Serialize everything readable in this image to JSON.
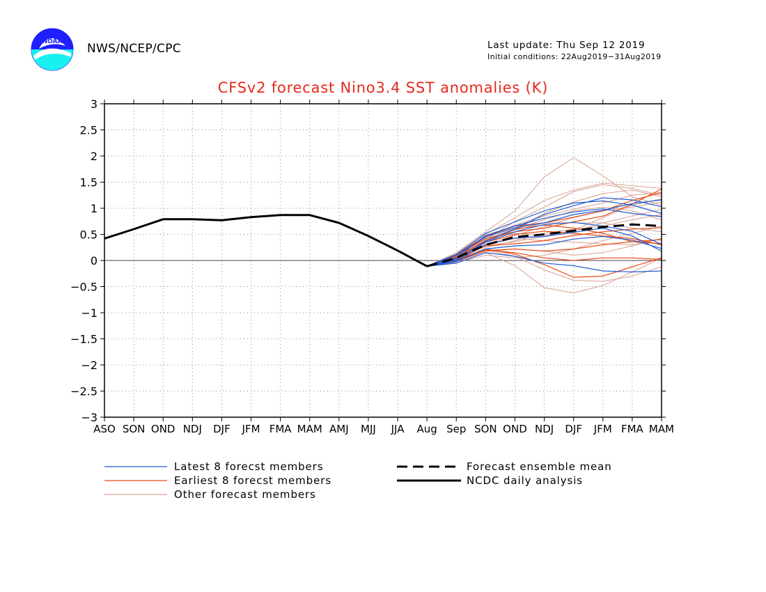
{
  "header": {
    "org": "NWS/NCEP/CPC",
    "last_update": "Last update: Thu Sep 12 2019",
    "initial_conditions": "Initial conditions: 22Aug2019−31Aug2019",
    "logo_text": "NOAA"
  },
  "legend": {
    "latest": "Latest 8 forecst members",
    "earliest": "Earliest 8 forecst members",
    "other": "Other forecast members",
    "mean": "Forecast ensemble mean",
    "analysis": "NCDC daily analysis"
  },
  "colors": {
    "latest": "#1f5bd6",
    "earliest": "#e84a17",
    "other": "#d6a090",
    "title": "#e8281c",
    "mean": "#000000",
    "analysis": "#000000"
  },
  "chart_data": {
    "type": "line",
    "title": "CFSv2 forecast Nino3.4 SST anomalies (K)",
    "categories": [
      "ASO",
      "SON",
      "OND",
      "NDJ",
      "DJF",
      "JFM",
      "FMA",
      "MAM",
      "AMJ",
      "MJJ",
      "JJA",
      "Aug",
      "Sep",
      "SON",
      "OND",
      "NDJ",
      "DJF",
      "JFM",
      "FMA",
      "MAM"
    ],
    "ylim": [
      -3,
      3
    ],
    "yticks": [
      "3",
      "2.5",
      "2",
      "1.5",
      "1",
      "0.5",
      "0",
      "−0.5",
      "−1",
      "−1.5",
      "−2",
      "−2.5",
      "−3"
    ],
    "grid": true,
    "analysis": [
      0.42,
      0.6,
      0.79,
      0.79,
      0.77,
      0.83,
      0.87,
      0.87,
      0.72,
      0.47,
      0.19,
      -0.11
    ],
    "ensemble_mean": [
      -0.11,
      0.05,
      0.3,
      0.45,
      0.5,
      0.57,
      0.64,
      0.69,
      0.66
    ],
    "latest_members": [
      [
        -0.11,
        0.12,
        0.52,
        0.74,
        0.95,
        1.1,
        1.14,
        1.06,
        0.9
      ],
      [
        -0.11,
        0.02,
        0.37,
        0.6,
        0.88,
        1.05,
        1.2,
        1.16,
        1.03
      ],
      [
        -0.11,
        0.05,
        0.48,
        0.66,
        0.81,
        0.93,
        0.99,
        0.9,
        0.84
      ],
      [
        -0.11,
        0.0,
        0.3,
        0.43,
        0.46,
        0.54,
        0.62,
        0.47,
        0.18
      ],
      [
        -0.11,
        -0.05,
        0.15,
        0.08,
        -0.05,
        -0.1,
        -0.2,
        -0.22,
        -0.2
      ],
      [
        -0.11,
        0.1,
        0.45,
        0.63,
        0.72,
        0.88,
        0.96,
        1.09,
        1.16
      ],
      [
        -0.11,
        0.04,
        0.35,
        0.55,
        0.69,
        0.73,
        0.66,
        0.56,
        0.31
      ],
      [
        -0.11,
        -0.02,
        0.22,
        0.28,
        0.3,
        0.41,
        0.46,
        0.39,
        0.23
      ]
    ],
    "earliest_members": [
      [
        -0.11,
        0.1,
        0.42,
        0.55,
        0.62,
        0.74,
        0.85,
        1.08,
        1.37
      ],
      [
        -0.11,
        0.08,
        0.38,
        0.6,
        0.68,
        0.62,
        0.52,
        0.36,
        0.32
      ],
      [
        -0.11,
        0.0,
        0.22,
        0.12,
        -0.08,
        -0.32,
        -0.3,
        -0.12,
        0.05
      ],
      [
        -0.11,
        0.05,
        0.28,
        0.32,
        0.38,
        0.48,
        0.55,
        0.6,
        0.63
      ],
      [
        -0.11,
        0.12,
        0.46,
        0.66,
        0.72,
        0.83,
        0.95,
        1.15,
        1.3
      ],
      [
        -0.11,
        -0.02,
        0.18,
        0.22,
        0.18,
        0.22,
        0.3,
        0.36,
        0.4
      ],
      [
        -0.11,
        0.06,
        0.35,
        0.5,
        0.56,
        0.52,
        0.47,
        0.42,
        0.3
      ],
      [
        -0.11,
        0.03,
        0.2,
        0.15,
        0.05,
        0.0,
        0.05,
        0.05,
        0.02
      ]
    ],
    "other_members": [
      [
        -0.11,
        0.15,
        0.55,
        0.95,
        1.6,
        1.97,
        1.62,
        1.22,
        1.06
      ],
      [
        -0.11,
        0.1,
        0.5,
        0.82,
        1.15,
        1.35,
        1.48,
        1.43,
        1.38
      ],
      [
        -0.11,
        0.05,
        0.4,
        0.75,
        1.02,
        1.32,
        1.45,
        1.38,
        1.25
      ],
      [
        -0.11,
        -0.05,
        0.15,
        -0.1,
        -0.52,
        -0.62,
        -0.48,
        -0.22,
        0.05
      ],
      [
        -0.11,
        0.0,
        0.2,
        0.08,
        -0.18,
        -0.38,
        -0.4,
        -0.3,
        -0.12
      ],
      [
        -0.11,
        0.08,
        0.45,
        0.68,
        0.85,
        0.98,
        1.1,
        1.25,
        1.3
      ],
      [
        -0.11,
        0.02,
        0.3,
        0.48,
        0.65,
        0.82,
        0.95,
        1.02,
        1.12
      ],
      [
        -0.11,
        0.06,
        0.38,
        0.58,
        0.72,
        0.72,
        0.72,
        0.62,
        0.55
      ],
      [
        -0.11,
        -0.02,
        0.25,
        0.38,
        0.52,
        0.6,
        0.66,
        0.78,
        0.88
      ],
      [
        -0.11,
        0.04,
        0.32,
        0.42,
        0.38,
        0.35,
        0.32,
        0.3,
        0.42
      ],
      [
        -0.11,
        0.0,
        0.2,
        0.22,
        0.18,
        0.1,
        0.15,
        0.28,
        0.42
      ],
      [
        -0.11,
        0.1,
        0.42,
        0.52,
        0.48,
        0.56,
        0.72,
        0.85,
        0.98
      ],
      [
        -0.11,
        0.05,
        0.35,
        0.6,
        0.78,
        0.95,
        1.02,
        0.95,
        0.78
      ],
      [
        -0.11,
        0.0,
        0.28,
        0.36,
        0.46,
        0.58,
        0.82,
        1.06,
        1.18
      ],
      [
        -0.11,
        0.07,
        0.4,
        0.62,
        0.9,
        1.12,
        1.28,
        1.35,
        1.22
      ],
      [
        -0.11,
        -0.04,
        0.1,
        0.05,
        0.1,
        0.22,
        0.38,
        0.52,
        0.66
      ]
    ]
  }
}
